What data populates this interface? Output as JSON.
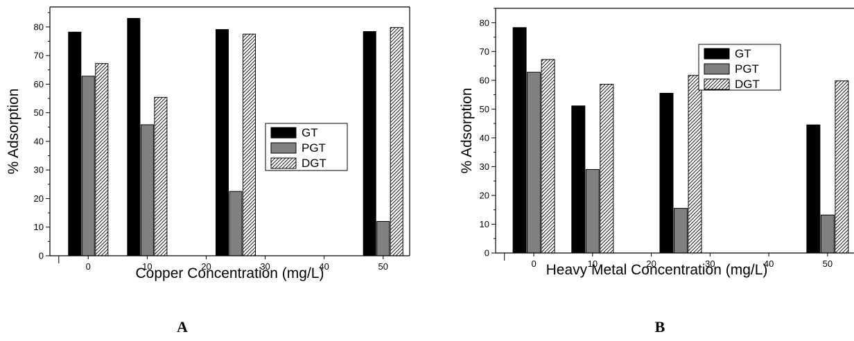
{
  "chart_data": [
    {
      "type": "bar",
      "panel_label": "A",
      "xlabel": "Copper Concentration (mg/L)",
      "ylabel": "% Adsorption",
      "ylim": [
        0,
        87
      ],
      "yticks": [
        0,
        10,
        20,
        30,
        40,
        50,
        60,
        70,
        80
      ],
      "xticks": [
        0,
        10,
        20,
        30,
        40,
        50
      ],
      "xlim": [
        -6.5,
        54.5
      ],
      "groups": [
        {
          "x": 0,
          "values": [
            78.2,
            62.8,
            67.2
          ]
        },
        {
          "x": 10,
          "values": [
            83.0,
            45.8,
            55.4
          ]
        },
        {
          "x": 25,
          "values": [
            79.1,
            22.5,
            77.5
          ]
        },
        {
          "x": 50,
          "values": [
            78.4,
            12.0,
            79.8
          ]
        }
      ],
      "series": [
        {
          "name": "GT",
          "pattern": "solid-black"
        },
        {
          "name": "PGT",
          "pattern": "solid-gray"
        },
        {
          "name": "DGT",
          "pattern": "hatched"
        }
      ],
      "legend": "center-right",
      "grid": false
    },
    {
      "type": "bar",
      "panel_label": "B",
      "xlabel": "Heavy Metal Concentration (mg/L)",
      "ylabel": "% Adsorption",
      "ylim": [
        0,
        85
      ],
      "yticks": [
        0,
        10,
        20,
        30,
        40,
        50,
        60,
        70,
        80
      ],
      "xticks": [
        0,
        10,
        20,
        30,
        40,
        50
      ],
      "xlim": [
        -6.5,
        54.5
      ],
      "groups": [
        {
          "x": 0,
          "values": [
            78.3,
            62.8,
            67.2
          ]
        },
        {
          "x": 10,
          "values": [
            51.1,
            29.0,
            58.6
          ]
        },
        {
          "x": 25,
          "values": [
            55.5,
            15.5,
            61.7
          ]
        },
        {
          "x": 50,
          "values": [
            44.5,
            13.2,
            59.8
          ]
        }
      ],
      "series": [
        {
          "name": "GT",
          "pattern": "solid-black"
        },
        {
          "name": "PGT",
          "pattern": "solid-gray"
        },
        {
          "name": "DGT",
          "pattern": "hatched"
        }
      ],
      "legend": "top-right",
      "grid": false
    }
  ]
}
